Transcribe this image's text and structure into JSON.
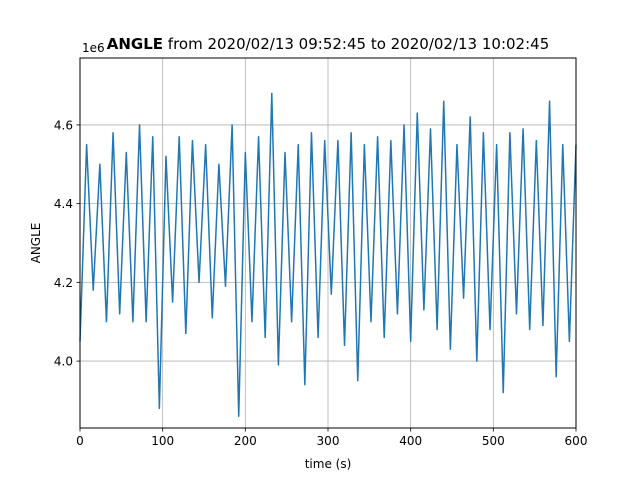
{
  "chart_data": {
    "type": "line",
    "title_bold": "ANGLE",
    "title_rest": " from 2020/02/13 09:52:45 to 2020/02/13 10:02:45",
    "xlabel": "time (s)",
    "ylabel": "ANGLE",
    "y_offset_label": "1e6",
    "xlim": [
      0,
      600
    ],
    "ylim": [
      3.83,
      4.77
    ],
    "x_ticks": [
      0,
      100,
      200,
      300,
      400,
      500,
      600
    ],
    "x_tick_labels": [
      "0",
      "100",
      "200",
      "300",
      "400",
      "500",
      "600"
    ],
    "y_ticks": [
      4.0,
      4.2,
      4.4,
      4.6
    ],
    "y_tick_labels": [
      "4.0",
      "4.2",
      "4.4",
      "4.6"
    ],
    "grid": true,
    "line_color": "#1f77b4",
    "series": [
      {
        "x": [
          0,
          8,
          16,
          24,
          32,
          40,
          48,
          56,
          64,
          72,
          80,
          88,
          96,
          104,
          112,
          120,
          128,
          136,
          144,
          152,
          160,
          168,
          176,
          184,
          192,
          200,
          208,
          216,
          224,
          232,
          240,
          248,
          256,
          264,
          272,
          280,
          288,
          296,
          304,
          312,
          320,
          328,
          336,
          344,
          352,
          360,
          368,
          376,
          384,
          392,
          400,
          408,
          416,
          424,
          432,
          440,
          448,
          456,
          464,
          472,
          480,
          488,
          496,
          504,
          512,
          520,
          528,
          536,
          544,
          552,
          560,
          568,
          576,
          584,
          592,
          600
        ],
        "y": [
          4.05,
          4.55,
          4.18,
          4.5,
          4.1,
          4.58,
          4.12,
          4.53,
          4.1,
          4.6,
          4.1,
          4.57,
          3.88,
          4.52,
          4.15,
          4.57,
          4.07,
          4.56,
          4.2,
          4.55,
          4.11,
          4.5,
          4.19,
          4.6,
          3.86,
          4.53,
          4.1,
          4.57,
          4.06,
          4.68,
          3.99,
          4.53,
          4.1,
          4.55,
          3.94,
          4.58,
          4.06,
          4.56,
          4.17,
          4.56,
          4.04,
          4.58,
          3.95,
          4.55,
          4.1,
          4.57,
          4.06,
          4.56,
          4.12,
          4.6,
          4.05,
          4.63,
          4.13,
          4.59,
          4.08,
          4.66,
          4.03,
          4.55,
          4.16,
          4.62,
          4.0,
          4.58,
          4.08,
          4.55,
          3.92,
          4.58,
          4.12,
          4.59,
          4.08,
          4.56,
          4.09,
          4.66,
          3.96,
          4.55,
          4.05,
          4.55
        ]
      }
    ]
  }
}
